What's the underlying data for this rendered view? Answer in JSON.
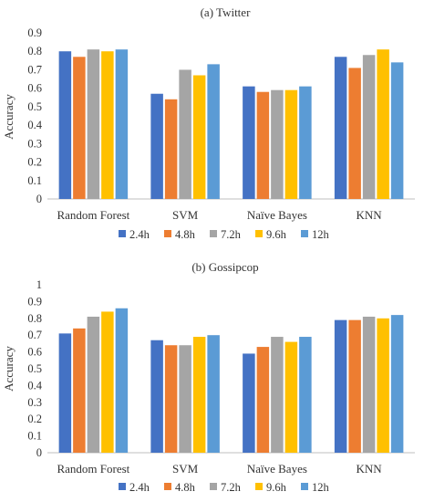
{
  "colors": {
    "series": [
      "#4472C4",
      "#ED7D31",
      "#A5A5A5",
      "#FFC000",
      "#5B9BD5"
    ],
    "axis": "#bfbfbf",
    "text": "#333333"
  },
  "chart_data": [
    {
      "type": "bar",
      "title": "(a) Twitter",
      "ylabel": "Accuracy",
      "xlabel": "",
      "ylim": [
        0,
        0.9
      ],
      "yticks": [
        "0",
        "0.1",
        "0.2",
        "0.3",
        "0.4",
        "0.5",
        "0.6",
        "0.7",
        "0.8",
        "0.9"
      ],
      "categories": [
        "Random Forest",
        "SVM",
        "Naïve Bayes",
        "KNN"
      ],
      "series": [
        {
          "name": "2.4h",
          "values": [
            0.8,
            0.57,
            0.61,
            0.77
          ]
        },
        {
          "name": "4.8h",
          "values": [
            0.77,
            0.54,
            0.58,
            0.71
          ]
        },
        {
          "name": "7.2h",
          "values": [
            0.81,
            0.7,
            0.59,
            0.78
          ]
        },
        {
          "name": "9.6h",
          "values": [
            0.8,
            0.67,
            0.59,
            0.81
          ]
        },
        {
          "name": "12h",
          "values": [
            0.81,
            0.73,
            0.61,
            0.74
          ]
        }
      ],
      "legend": "bottom",
      "grid": false
    },
    {
      "type": "bar",
      "title": "(b) Gossipcop",
      "ylabel": "Accuracy",
      "xlabel": "",
      "ylim": [
        0,
        1
      ],
      "yticks": [
        "0",
        "0.1",
        "0.2",
        "0.3",
        "0.4",
        "0.5",
        "0.6",
        "0.7",
        "0.8",
        "0.9",
        "1"
      ],
      "categories": [
        "Random Forest",
        "SVM",
        "Naïve Bayes",
        "KNN"
      ],
      "series": [
        {
          "name": "2.4h",
          "values": [
            0.71,
            0.67,
            0.59,
            0.79
          ]
        },
        {
          "name": "4.8h",
          "values": [
            0.74,
            0.64,
            0.63,
            0.79
          ]
        },
        {
          "name": "7.2h",
          "values": [
            0.81,
            0.64,
            0.69,
            0.81
          ]
        },
        {
          "name": "9.6h",
          "values": [
            0.84,
            0.69,
            0.66,
            0.8
          ]
        },
        {
          "name": "12h",
          "values": [
            0.86,
            0.7,
            0.69,
            0.82
          ]
        }
      ],
      "legend": "bottom",
      "grid": false
    }
  ]
}
